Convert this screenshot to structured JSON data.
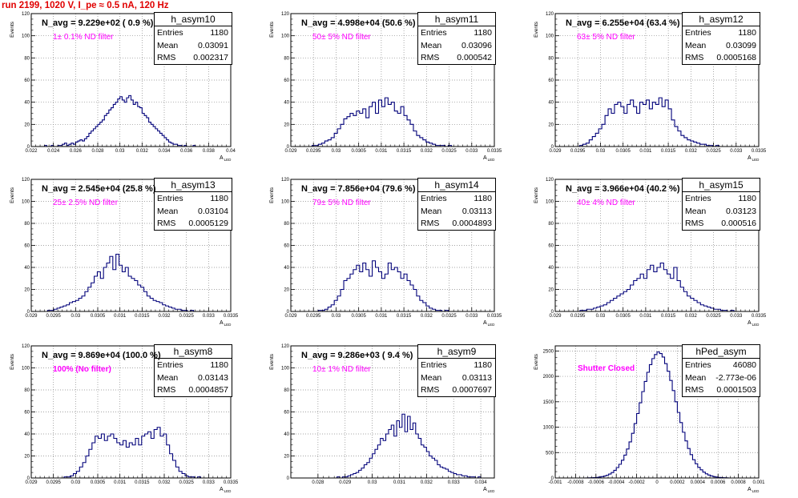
{
  "window": {
    "title": "run 2199,  1020 V, I_pe ≈ 0.5 nA, 120 Hz"
  },
  "chart_data": [
    {
      "type": "histogram",
      "name": "h_asym10",
      "navg": "N_avg = 9.229e+02 ( 0.9 %)",
      "filter_label": "1± 0.1% ND filter",
      "stats": {
        "entries": "1180",
        "mean": "0.03091",
        "rms": "0.002317"
      },
      "xlabel": "A_LED",
      "ylabel": "Events",
      "xlim": [
        0.022,
        0.04
      ],
      "ylim": [
        0,
        120
      ],
      "xticks": [
        0.022,
        0.024,
        0.026,
        0.028,
        0.03,
        0.032,
        0.034,
        0.036,
        0.038,
        0.04
      ],
      "xtick_labels": [
        "0.022",
        "0.024",
        "0.026",
        "0.028",
        "0.03",
        "0.032",
        "0.034",
        "0.036",
        "0.038",
        "0.04"
      ],
      "yticks": [
        0,
        20,
        40,
        60,
        80,
        100,
        120
      ],
      "bins": {
        "lo": 0.0232,
        "hi": 0.0372,
        "counts": [
          1,
          0,
          0,
          1,
          0,
          0,
          1,
          1,
          2,
          3,
          1,
          2,
          3,
          2,
          4,
          5,
          6,
          5,
          7,
          9,
          12,
          14,
          16,
          18,
          20,
          22,
          24,
          28,
          30,
          33,
          35,
          38,
          40,
          43,
          45,
          42,
          40,
          44,
          46,
          42,
          38,
          40,
          36,
          35,
          30,
          28,
          26,
          22,
          20,
          18,
          16,
          14,
          12,
          10,
          8,
          6,
          4,
          3,
          2,
          2,
          1,
          1,
          0,
          1,
          0,
          0,
          0,
          1,
          0,
          0
        ]
      }
    },
    {
      "type": "histogram",
      "name": "h_asym11",
      "navg": "N_avg = 4.998e+04 (50.6 %)",
      "filter_label": "50± 5% ND filter",
      "stats": {
        "entries": "1180",
        "mean": "0.03096",
        "rms": "0.000542"
      },
      "xlabel": "A_LED",
      "ylabel": "Events",
      "xlim": [
        0.029,
        0.0335
      ],
      "ylim": [
        0,
        120
      ],
      "xticks": [
        0.029,
        0.0295,
        0.03,
        0.0305,
        0.031,
        0.0315,
        0.032,
        0.0325,
        0.033,
        0.0335
      ],
      "xtick_labels": [
        "0.029",
        "0.0295",
        "0.03",
        "0.0305",
        "0.031",
        "0.0315",
        "0.032",
        "0.0325",
        "0.033",
        "0.0335"
      ],
      "yticks": [
        0,
        20,
        40,
        60,
        80,
        100,
        120
      ],
      "bins": {
        "lo": 0.0294,
        "hi": 0.0329,
        "counts": [
          0,
          1,
          1,
          2,
          3,
          5,
          6,
          8,
          12,
          16,
          20,
          25,
          27,
          30,
          28,
          32,
          30,
          34,
          26,
          36,
          40,
          30,
          42,
          36,
          44,
          38,
          40,
          32,
          30,
          36,
          28,
          24,
          20,
          14,
          10,
          8,
          6,
          4,
          3,
          2,
          1,
          1,
          1,
          0,
          1,
          0,
          0,
          0,
          0,
          0
        ]
      }
    },
    {
      "type": "histogram",
      "name": "h_asym12",
      "navg": "N_avg = 6.255e+04 (63.4 %)",
      "filter_label": "63± 5% ND filter",
      "stats": {
        "entries": "1180",
        "mean": "0.03099",
        "rms": "0.0005168"
      },
      "xlabel": "A_LED",
      "ylabel": "Events",
      "xlim": [
        0.029,
        0.0335
      ],
      "ylim": [
        0,
        120
      ],
      "xticks": [
        0.029,
        0.0295,
        0.03,
        0.0305,
        0.031,
        0.0315,
        0.032,
        0.0325,
        0.033,
        0.0335
      ],
      "xtick_labels": [
        "0.029",
        "0.0295",
        "0.03",
        "0.0305",
        "0.031",
        "0.0315",
        "0.032",
        "0.0325",
        "0.033",
        "0.0335"
      ],
      "yticks": [
        0,
        20,
        40,
        60,
        80,
        100,
        120
      ],
      "bins": {
        "lo": 0.0294,
        "hi": 0.0329,
        "counts": [
          0,
          0,
          1,
          2,
          3,
          6,
          9,
          12,
          16,
          20,
          28,
          34,
          30,
          38,
          40,
          36,
          30,
          38,
          42,
          36,
          30,
          40,
          38,
          42,
          34,
          40,
          38,
          44,
          36,
          42,
          34,
          24,
          18,
          14,
          10,
          8,
          6,
          5,
          4,
          3,
          2,
          2,
          1,
          1,
          0,
          1,
          0,
          0,
          0,
          0
        ]
      }
    },
    {
      "type": "histogram",
      "name": "h_asym13",
      "navg": "N_avg = 2.545e+04 (25.8 %)",
      "filter_label": "25± 2.5% ND filter",
      "stats": {
        "entries": "1180",
        "mean": "0.03104",
        "rms": "0.0005129"
      },
      "xlabel": "A_LED",
      "ylabel": "Events",
      "xlim": [
        0.029,
        0.0335
      ],
      "ylim": [
        0,
        120
      ],
      "xticks": [
        0.029,
        0.0295,
        0.03,
        0.0305,
        0.031,
        0.0315,
        0.032,
        0.0325,
        0.033,
        0.0335
      ],
      "xtick_labels": [
        "0.029",
        "0.0295",
        "0.03",
        "0.0305",
        "0.031",
        "0.0315",
        "0.032",
        "0.0325",
        "0.033",
        "0.0335"
      ],
      "yticks": [
        0,
        20,
        40,
        60,
        80,
        100,
        120
      ],
      "bins": {
        "lo": 0.0293,
        "hi": 0.0328,
        "counts": [
          0,
          1,
          1,
          2,
          3,
          4,
          5,
          6,
          8,
          9,
          10,
          12,
          14,
          18,
          22,
          26,
          32,
          36,
          30,
          40,
          44,
          50,
          38,
          52,
          42,
          36,
          40,
          32,
          30,
          28,
          24,
          22,
          18,
          14,
          12,
          10,
          9,
          8,
          6,
          5,
          4,
          3,
          2,
          2,
          1,
          1,
          0,
          1,
          0,
          0
        ]
      }
    },
    {
      "type": "histogram",
      "name": "h_asym14",
      "navg": "N_avg = 7.856e+04 (79.6 %)",
      "filter_label": "79± 5% ND filter",
      "stats": {
        "entries": "1180",
        "mean": "0.03113",
        "rms": "0.0004893"
      },
      "xlabel": "A_LED",
      "ylabel": "Events",
      "xlim": [
        0.029,
        0.0335
      ],
      "ylim": [
        0,
        120
      ],
      "xticks": [
        0.029,
        0.0295,
        0.03,
        0.0305,
        0.031,
        0.0315,
        0.032,
        0.0325,
        0.033,
        0.0335
      ],
      "xtick_labels": [
        "0.029",
        "0.0295",
        "0.03",
        "0.0305",
        "0.031",
        "0.0315",
        "0.032",
        "0.0325",
        "0.033",
        "0.0335"
      ],
      "yticks": [
        0,
        20,
        40,
        60,
        80,
        100,
        120
      ],
      "bins": {
        "lo": 0.0294,
        "hi": 0.0329,
        "counts": [
          0,
          0,
          0,
          1,
          1,
          2,
          4,
          6,
          10,
          14,
          20,
          28,
          30,
          34,
          38,
          42,
          36,
          44,
          38,
          32,
          46,
          40,
          36,
          30,
          34,
          44,
          38,
          40,
          36,
          30,
          34,
          28,
          24,
          20,
          14,
          10,
          8,
          5,
          3,
          2,
          1,
          1,
          0,
          1,
          0,
          0,
          0,
          0,
          0,
          0
        ]
      }
    },
    {
      "type": "histogram",
      "name": "h_asym15",
      "navg": "N_avg = 3.966e+04 (40.2 %)",
      "filter_label": "40± 4% ND filter",
      "stats": {
        "entries": "1180",
        "mean": "0.03123",
        "rms": "0.000516"
      },
      "xlabel": "A_LED",
      "ylabel": "Events",
      "xlim": [
        0.029,
        0.0335
      ],
      "ylim": [
        0,
        120
      ],
      "xticks": [
        0.029,
        0.0295,
        0.03,
        0.0305,
        0.031,
        0.0315,
        0.032,
        0.0325,
        0.033,
        0.0335
      ],
      "xtick_labels": [
        "0.029",
        "0.0295",
        "0.03",
        "0.0305",
        "0.031",
        "0.0315",
        "0.032",
        "0.0325",
        "0.033",
        "0.0335"
      ],
      "yticks": [
        0,
        20,
        40,
        60,
        80,
        100,
        120
      ],
      "bins": {
        "lo": 0.0294,
        "hi": 0.0331,
        "counts": [
          0,
          0,
          1,
          1,
          2,
          2,
          3,
          4,
          5,
          6,
          8,
          10,
          12,
          14,
          16,
          18,
          20,
          24,
          28,
          30,
          34,
          30,
          38,
          42,
          36,
          40,
          44,
          38,
          34,
          30,
          40,
          28,
          22,
          18,
          14,
          12,
          10,
          8,
          6,
          5,
          4,
          3,
          2,
          2,
          1,
          1,
          0,
          1,
          0,
          0
        ]
      }
    },
    {
      "type": "histogram",
      "name": "h_asym8",
      "navg": "N_avg = 9.869e+04 (100.0 %)",
      "filter_label": "100% (No filter)",
      "stats": {
        "entries": "1180",
        "mean": "0.03143",
        "rms": "0.0004857"
      },
      "xlabel": "A_LED",
      "ylabel": "Events",
      "xlim": [
        0.029,
        0.0335
      ],
      "ylim": [
        0,
        120
      ],
      "xticks": [
        0.029,
        0.0295,
        0.03,
        0.0305,
        0.031,
        0.0315,
        0.032,
        0.0325,
        0.033,
        0.0335
      ],
      "xtick_labels": [
        "0.029",
        "0.0295",
        "0.03",
        "0.0305",
        "0.031",
        "0.0315",
        "0.032",
        "0.0325",
        "0.033",
        "0.0335"
      ],
      "yticks": [
        0,
        20,
        40,
        60,
        80,
        100,
        120
      ],
      "bins": {
        "lo": 0.0296,
        "hi": 0.0331,
        "counts": [
          0,
          0,
          1,
          1,
          2,
          4,
          6,
          10,
          14,
          20,
          26,
          32,
          38,
          36,
          40,
          34,
          38,
          40,
          36,
          32,
          30,
          34,
          28,
          32,
          30,
          36,
          30,
          38,
          40,
          42,
          36,
          44,
          46,
          38,
          40,
          30,
          22,
          16,
          10,
          6,
          4,
          2,
          1,
          1,
          0,
          1,
          0,
          0,
          0,
          0
        ]
      }
    },
    {
      "type": "histogram",
      "name": "h_asym9",
      "navg": "N_avg = 9.286e+03 ( 9.4 %)",
      "filter_label": "10± 1% ND filter",
      "stats": {
        "entries": "1180",
        "mean": "0.03113",
        "rms": "0.0007697"
      },
      "xlabel": "A_LED",
      "ylabel": "Events",
      "xlim": [
        0.027,
        0.0345
      ],
      "ylim": [
        0,
        120
      ],
      "xticks": [
        0.028,
        0.029,
        0.03,
        0.031,
        0.032,
        0.033,
        0.034
      ],
      "xtick_labels": [
        "0.028",
        "0.029",
        "0.03",
        "0.031",
        "0.032",
        "0.033",
        "0.034"
      ],
      "yticks": [
        0,
        20,
        40,
        60,
        80,
        100,
        120
      ],
      "bins": {
        "lo": 0.0286,
        "hi": 0.0342,
        "counts": [
          0,
          1,
          0,
          1,
          1,
          2,
          3,
          4,
          5,
          7,
          9,
          12,
          14,
          18,
          22,
          26,
          30,
          36,
          34,
          40,
          44,
          48,
          38,
          52,
          46,
          58,
          42,
          56,
          44,
          50,
          40,
          36,
          30,
          28,
          24,
          20,
          18,
          16,
          12,
          10,
          9,
          8,
          6,
          5,
          4,
          3,
          3,
          2,
          2,
          1,
          1,
          1,
          0,
          1,
          0,
          0
        ]
      }
    },
    {
      "type": "histogram",
      "name": "hPed_asym",
      "navg": "",
      "filter_label": "Shutter Closed",
      "stats": {
        "entries": "46080",
        "mean": "-2.773e-06",
        "rms": "0.0001503"
      },
      "xlabel": "A_LED",
      "ylabel": "Events",
      "xlim": [
        -0.001,
        0.001
      ],
      "ylim": [
        0,
        2600
      ],
      "xticks": [
        -0.001,
        -0.0008,
        -0.0006,
        -0.0004,
        -0.0002,
        0,
        0.0002,
        0.0004,
        0.0006,
        0.0008,
        0.001
      ],
      "xtick_labels": [
        "-0.001",
        "-0.0008",
        "-0.0006",
        "-0.0004",
        "-0.0002",
        "0",
        "0.0002",
        "0.0004",
        "0.0006",
        "0.0008",
        "0.001"
      ],
      "yticks": [
        0,
        500,
        1000,
        1500,
        2000,
        2500
      ],
      "bins": {
        "lo": -0.0007,
        "hi": 0.0007,
        "counts": [
          2,
          3,
          5,
          8,
          12,
          18,
          26,
          38,
          55,
          78,
          108,
          150,
          205,
          270,
          350,
          450,
          570,
          710,
          880,
          1070,
          1270,
          1480,
          1700,
          1900,
          2080,
          2230,
          2350,
          2430,
          2480,
          2450,
          2380,
          2250,
          2100,
          1920,
          1720,
          1500,
          1290,
          1090,
          900,
          730,
          580,
          460,
          360,
          280,
          210,
          160,
          115,
          82,
          58,
          40,
          27,
          18,
          12,
          8,
          5,
          3
        ]
      }
    }
  ]
}
